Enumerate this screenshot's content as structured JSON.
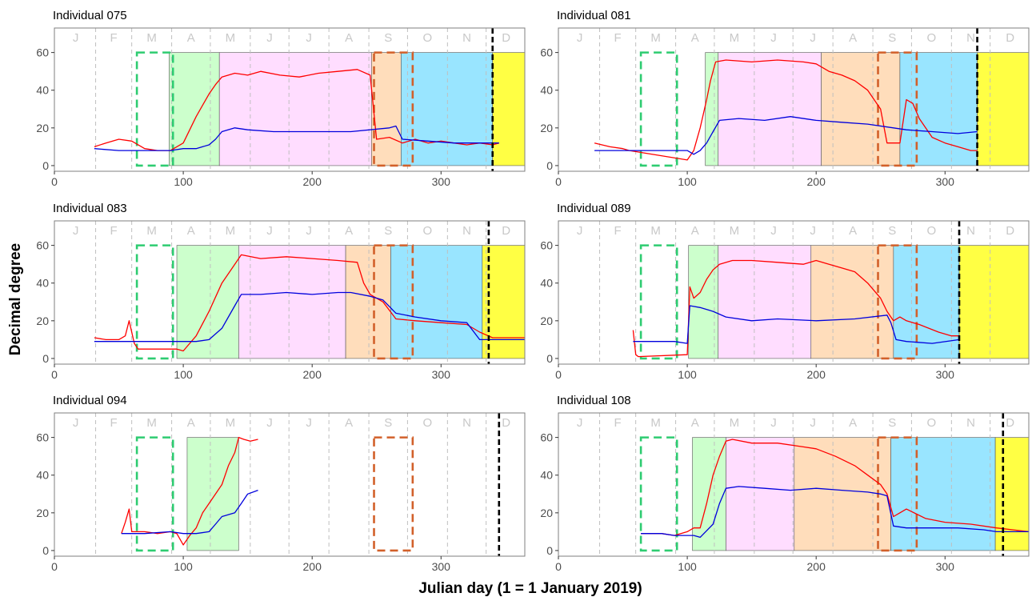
{
  "figure": {
    "ylabel": "Decimal degree",
    "xlabel": "Julian day (1 = 1 January 2019)"
  },
  "colors": {
    "latitude": "#ff0000",
    "longitude": "#0000dd",
    "marker_green": "#2ecc71",
    "marker_orange": "#d2602a",
    "marker_black": "#000000",
    "stage_green": "#ccffcc",
    "stage_pink": "#ffddff",
    "stage_peach": "#ffddbb",
    "stage_cyan": "#99e5ff",
    "stage_yellow": "#ffff44",
    "month_line": "#bfbfbf",
    "month_letter": "#c8c8c8",
    "panel_border": "#7f7f7f"
  },
  "chart_data": [
    {
      "type": "line",
      "title": "Individual 075",
      "xlim": [
        0,
        365
      ],
      "ylim": [
        -3,
        73
      ],
      "xticks": [
        0,
        100,
        200,
        300
      ],
      "yticks": [
        0,
        20,
        40,
        60
      ],
      "month_letters": [
        "J",
        "F",
        "M",
        "A",
        "M",
        "J",
        "J",
        "A",
        "S",
        "O",
        "N",
        "D"
      ],
      "month_starts": [
        32,
        60,
        91,
        121,
        152,
        182,
        213,
        244,
        274,
        305,
        335
      ],
      "dashed_boxes": [
        {
          "color": "green",
          "x0": 64,
          "x1": 92,
          "y0": 0,
          "y1": 60
        },
        {
          "color": "orange",
          "x0": 248,
          "x1": 278,
          "y0": 0,
          "y1": 60
        }
      ],
      "vline_day": 340,
      "stages": [
        {
          "color": "green",
          "x0": 89,
          "x1": 128
        },
        {
          "color": "pink",
          "x0": 128,
          "x1": 246
        },
        {
          "color": "peach",
          "x0": 246,
          "x1": 269
        },
        {
          "color": "cyan",
          "x0": 269,
          "x1": 340
        },
        {
          "color": "yellow",
          "x0": 340,
          "x1": 365
        }
      ],
      "series": [
        {
          "series_key": "lat",
          "x": [
            31,
            40,
            50,
            60,
            70,
            80,
            90,
            95,
            100,
            110,
            120,
            125,
            130,
            140,
            150,
            160,
            175,
            190,
            205,
            220,
            235,
            245,
            250,
            260,
            270,
            280,
            290,
            300,
            310,
            320,
            330,
            340,
            345
          ],
          "y": [
            10,
            12,
            14,
            13,
            9,
            8,
            8,
            10,
            12,
            26,
            38,
            43,
            47,
            49,
            48,
            50,
            48,
            47,
            49,
            50,
            51,
            48,
            14,
            15,
            12,
            14,
            12,
            13,
            12,
            11,
            12,
            11,
            12
          ]
        },
        {
          "series_key": "lon",
          "x": [
            31,
            50,
            70,
            90,
            100,
            110,
            120,
            125,
            130,
            140,
            150,
            170,
            200,
            230,
            260,
            265,
            270,
            290,
            310,
            330,
            345
          ],
          "y": [
            9,
            8,
            8,
            8,
            9,
            9,
            11,
            14,
            18,
            20,
            19,
            18,
            18,
            18,
            20,
            21,
            14,
            13,
            12,
            12,
            12
          ]
        }
      ]
    },
    {
      "type": "line",
      "title": "Individual 081",
      "xlim": [
        0,
        365
      ],
      "ylim": [
        -3,
        73
      ],
      "xticks": [
        0,
        100,
        200,
        300
      ],
      "yticks": [
        0,
        20,
        40,
        60
      ],
      "month_letters": [
        "J",
        "F",
        "M",
        "A",
        "M",
        "J",
        "J",
        "A",
        "S",
        "O",
        "N",
        "D"
      ],
      "month_starts": [
        32,
        60,
        91,
        121,
        152,
        182,
        213,
        244,
        274,
        305,
        335
      ],
      "dashed_boxes": [
        {
          "color": "green",
          "x0": 64,
          "x1": 92,
          "y0": 0,
          "y1": 60
        },
        {
          "color": "orange",
          "x0": 248,
          "x1": 278,
          "y0": 0,
          "y1": 60
        }
      ],
      "vline_day": 325,
      "stages": [
        {
          "color": "green",
          "x0": 114,
          "x1": 124
        },
        {
          "color": "pink",
          "x0": 124,
          "x1": 204
        },
        {
          "color": "peach",
          "x0": 204,
          "x1": 265
        },
        {
          "color": "cyan",
          "x0": 265,
          "x1": 325
        },
        {
          "color": "yellow",
          "x0": 325,
          "x1": 365
        }
      ],
      "series": [
        {
          "series_key": "lat",
          "x": [
            28,
            40,
            50,
            55,
            100,
            105,
            110,
            115,
            118,
            122,
            130,
            150,
            170,
            190,
            200,
            210,
            220,
            230,
            240,
            250,
            255,
            265,
            270,
            275,
            280,
            290,
            300,
            310,
            320,
            325
          ],
          "y": [
            12,
            10,
            9,
            8,
            3,
            8,
            20,
            35,
            45,
            55,
            56,
            55,
            56,
            55,
            54,
            50,
            48,
            45,
            40,
            30,
            12,
            12,
            35,
            33,
            25,
            15,
            12,
            10,
            8,
            8
          ]
        },
        {
          "series_key": "lon",
          "x": [
            28,
            50,
            80,
            100,
            105,
            110,
            115,
            120,
            125,
            140,
            160,
            180,
            200,
            220,
            240,
            260,
            270,
            290,
            310,
            325
          ],
          "y": [
            8,
            8,
            8,
            8,
            6,
            8,
            12,
            18,
            24,
            25,
            24,
            26,
            24,
            23,
            22,
            20,
            19,
            18,
            17,
            18
          ]
        }
      ]
    },
    {
      "type": "line",
      "title": "Individual 083",
      "xlim": [
        0,
        365
      ],
      "ylim": [
        -3,
        73
      ],
      "xticks": [
        0,
        100,
        200,
        300
      ],
      "yticks": [
        0,
        20,
        40,
        60
      ],
      "month_letters": [
        "J",
        "F",
        "M",
        "A",
        "M",
        "J",
        "J",
        "A",
        "S",
        "O",
        "N",
        "D"
      ],
      "month_starts": [
        32,
        60,
        91,
        121,
        152,
        182,
        213,
        244,
        274,
        305,
        335
      ],
      "dashed_boxes": [
        {
          "color": "green",
          "x0": 64,
          "x1": 92,
          "y0": 0,
          "y1": 60
        },
        {
          "color": "orange",
          "x0": 248,
          "x1": 278,
          "y0": 0,
          "y1": 60
        }
      ],
      "vline_day": 337,
      "stages": [
        {
          "color": "green",
          "x0": 95,
          "x1": 143
        },
        {
          "color": "pink",
          "x0": 143,
          "x1": 226
        },
        {
          "color": "peach",
          "x0": 226,
          "x1": 261
        },
        {
          "color": "cyan",
          "x0": 261,
          "x1": 332
        },
        {
          "color": "yellow",
          "x0": 332,
          "x1": 365
        }
      ],
      "series": [
        {
          "series_key": "lat",
          "x": [
            31,
            40,
            50,
            55,
            58,
            62,
            65,
            80,
            95,
            100,
            110,
            120,
            130,
            140,
            145,
            160,
            180,
            200,
            220,
            235,
            240,
            245,
            255,
            265,
            280,
            300,
            320,
            330,
            340,
            365
          ],
          "y": [
            11,
            10,
            10,
            12,
            20,
            8,
            5,
            5,
            5,
            4,
            12,
            25,
            40,
            50,
            55,
            53,
            54,
            53,
            52,
            51,
            40,
            34,
            30,
            21,
            20,
            19,
            18,
            14,
            11,
            11
          ]
        },
        {
          "series_key": "lon",
          "x": [
            31,
            50,
            70,
            90,
            100,
            110,
            120,
            130,
            140,
            145,
            160,
            180,
            200,
            220,
            230,
            245,
            255,
            265,
            280,
            300,
            320,
            330,
            340,
            365
          ],
          "y": [
            9,
            9,
            9,
            9,
            9,
            9,
            10,
            16,
            28,
            34,
            34,
            35,
            34,
            35,
            35,
            33,
            31,
            24,
            22,
            20,
            19,
            10,
            10,
            10
          ]
        }
      ]
    },
    {
      "type": "line",
      "title": "Individual 089",
      "xlim": [
        0,
        365
      ],
      "ylim": [
        -3,
        73
      ],
      "xticks": [
        0,
        100,
        200,
        300
      ],
      "yticks": [
        0,
        20,
        40,
        60
      ],
      "month_letters": [
        "J",
        "F",
        "M",
        "A",
        "M",
        "J",
        "J",
        "A",
        "S",
        "O",
        "N",
        "D"
      ],
      "month_starts": [
        32,
        60,
        91,
        121,
        152,
        182,
        213,
        244,
        274,
        305,
        335
      ],
      "dashed_boxes": [
        {
          "color": "green",
          "x0": 64,
          "x1": 92,
          "y0": 0,
          "y1": 60
        },
        {
          "color": "orange",
          "x0": 248,
          "x1": 278,
          "y0": 0,
          "y1": 60
        }
      ],
      "vline_day": 311,
      "stages": [
        {
          "color": "green",
          "x0": 101,
          "x1": 124
        },
        {
          "color": "pink",
          "x0": 124,
          "x1": 196
        },
        {
          "color": "peach",
          "x0": 196,
          "x1": 260
        },
        {
          "color": "cyan",
          "x0": 260,
          "x1": 311
        },
        {
          "color": "yellow",
          "x0": 311,
          "x1": 365
        }
      ],
      "series": [
        {
          "series_key": "lat",
          "x": [
            58,
            60,
            62,
            100,
            102,
            105,
            110,
            115,
            120,
            125,
            135,
            150,
            170,
            190,
            200,
            210,
            220,
            230,
            240,
            250,
            255,
            260,
            265,
            270,
            280,
            295,
            305,
            311
          ],
          "y": [
            15,
            2,
            1,
            2,
            38,
            32,
            35,
            42,
            47,
            50,
            52,
            52,
            51,
            50,
            52,
            50,
            48,
            46,
            40,
            32,
            25,
            20,
            22,
            20,
            18,
            14,
            12,
            12
          ]
        },
        {
          "series_key": "lon",
          "x": [
            58,
            70,
            90,
            100,
            102,
            110,
            120,
            130,
            150,
            170,
            200,
            230,
            255,
            258,
            262,
            270,
            290,
            311
          ],
          "y": [
            9,
            9,
            9,
            8,
            28,
            27,
            25,
            22,
            20,
            21,
            20,
            21,
            23,
            19,
            10,
            9,
            8,
            10
          ]
        }
      ]
    },
    {
      "type": "line",
      "title": "Individual 094",
      "xlim": [
        0,
        365
      ],
      "ylim": [
        -3,
        73
      ],
      "xticks": [
        0,
        100,
        200,
        300
      ],
      "yticks": [
        0,
        20,
        40,
        60
      ],
      "month_letters": [
        "J",
        "F",
        "M",
        "A",
        "M",
        "J",
        "J",
        "A",
        "S",
        "O",
        "N",
        "D"
      ],
      "month_starts": [
        32,
        60,
        91,
        121,
        152,
        182,
        213,
        244,
        274,
        305,
        335
      ],
      "dashed_boxes": [
        {
          "color": "green",
          "x0": 64,
          "x1": 92,
          "y0": 0,
          "y1": 60
        },
        {
          "color": "orange",
          "x0": 248,
          "x1": 278,
          "y0": 0,
          "y1": 60
        }
      ],
      "vline_day": 345,
      "stages": [
        {
          "color": "green",
          "x0": 103,
          "x1": 143
        }
      ],
      "series": [
        {
          "series_key": "lat",
          "x": [
            52,
            55,
            58,
            60,
            62,
            70,
            80,
            90,
            95,
            100,
            105,
            110,
            115,
            120,
            125,
            130,
            135,
            140,
            143,
            147,
            152,
            158
          ],
          "y": [
            9,
            15,
            22,
            10,
            10,
            10,
            9,
            10,
            9,
            3,
            8,
            12,
            20,
            25,
            30,
            35,
            45,
            52,
            60,
            59,
            58,
            59
          ]
        },
        {
          "series_key": "lon",
          "x": [
            52,
            70,
            90,
            100,
            110,
            120,
            125,
            130,
            140,
            145,
            150,
            158
          ],
          "y": [
            9,
            9,
            10,
            9,
            9,
            10,
            14,
            18,
            20,
            25,
            30,
            32
          ]
        }
      ]
    },
    {
      "type": "line",
      "title": "Individual 108",
      "xlim": [
        0,
        365
      ],
      "ylim": [
        -3,
        73
      ],
      "xticks": [
        0,
        100,
        200,
        300
      ],
      "yticks": [
        0,
        20,
        40,
        60
      ],
      "month_letters": [
        "J",
        "F",
        "M",
        "A",
        "M",
        "J",
        "J",
        "A",
        "S",
        "O",
        "N",
        "D"
      ],
      "month_starts": [
        32,
        60,
        91,
        121,
        152,
        182,
        213,
        244,
        274,
        305,
        335
      ],
      "dashed_boxes": [
        {
          "color": "green",
          "x0": 64,
          "x1": 92,
          "y0": 0,
          "y1": 60
        },
        {
          "color": "orange",
          "x0": 248,
          "x1": 278,
          "y0": 0,
          "y1": 60
        }
      ],
      "vline_day": 345,
      "stages": [
        {
          "color": "green",
          "x0": 104,
          "x1": 130
        },
        {
          "color": "pink",
          "x0": 130,
          "x1": 183
        },
        {
          "color": "peach",
          "x0": 183,
          "x1": 258
        },
        {
          "color": "cyan",
          "x0": 258,
          "x1": 339
        },
        {
          "color": "yellow",
          "x0": 339,
          "x1": 365
        }
      ],
      "series": [
        {
          "series_key": "lat",
          "x": [
            64,
            80,
            90,
            100,
            105,
            110,
            115,
            120,
            125,
            130,
            135,
            150,
            170,
            190,
            200,
            215,
            230,
            240,
            250,
            255,
            260,
            265,
            270,
            285,
            300,
            320,
            340,
            365
          ],
          "y": [
            9,
            9,
            8,
            10,
            12,
            12,
            25,
            40,
            50,
            58,
            59,
            57,
            57,
            55,
            54,
            50,
            45,
            40,
            35,
            30,
            18,
            20,
            22,
            17,
            15,
            14,
            12,
            10
          ]
        },
        {
          "series_key": "lon",
          "x": [
            64,
            80,
            90,
            100,
            105,
            110,
            120,
            125,
            130,
            140,
            160,
            180,
            200,
            220,
            240,
            250,
            255,
            260,
            270,
            290,
            310,
            330,
            340,
            365
          ],
          "y": [
            9,
            9,
            8,
            8,
            8,
            7,
            14,
            25,
            33,
            34,
            33,
            32,
            33,
            32,
            31,
            30,
            29,
            13,
            12,
            12,
            12,
            11,
            10,
            10
          ]
        }
      ]
    }
  ]
}
